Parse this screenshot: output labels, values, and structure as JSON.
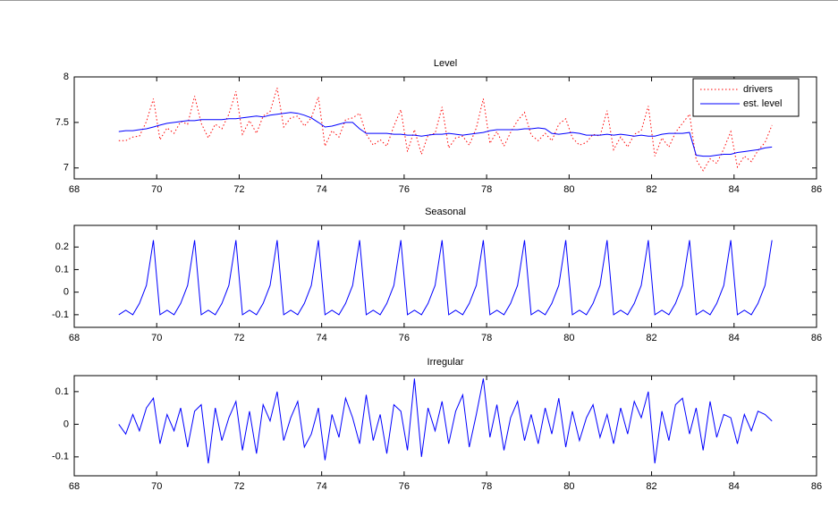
{
  "chart_data": [
    {
      "type": "line",
      "title": "Level",
      "legend": "northeast",
      "x": [
        69.08,
        69.25,
        69.42,
        69.58,
        69.75,
        69.92,
        70.08,
        70.25,
        70.42,
        70.58,
        70.75,
        70.92,
        71.08,
        71.25,
        71.42,
        71.58,
        71.75,
        71.92,
        72.08,
        72.25,
        72.42,
        72.58,
        72.75,
        72.92,
        73.08,
        73.25,
        73.42,
        73.58,
        73.75,
        73.92,
        74.08,
        74.25,
        74.42,
        74.58,
        74.75,
        74.92,
        75.08,
        75.25,
        75.42,
        75.58,
        75.75,
        75.92,
        76.08,
        76.25,
        76.42,
        76.58,
        76.75,
        76.92,
        77.08,
        77.25,
        77.42,
        77.58,
        77.75,
        77.92,
        78.08,
        78.25,
        78.42,
        78.58,
        78.75,
        78.92,
        79.08,
        79.25,
        79.42,
        79.58,
        79.75,
        79.92,
        80.08,
        80.25,
        80.42,
        80.58,
        80.75,
        80.92,
        81.08,
        81.25,
        81.42,
        81.58,
        81.75,
        81.92,
        82.08,
        82.25,
        82.42,
        82.58,
        82.75,
        82.92,
        83.08,
        83.25,
        83.42,
        83.58,
        83.75,
        83.92,
        84.08,
        84.25,
        84.42,
        84.58,
        84.75,
        84.92
      ],
      "series": [
        {
          "name": "drivers",
          "color": "#ff0000",
          "style": "dotted",
          "values": [
            7.3,
            7.3,
            7.34,
            7.35,
            7.51,
            7.76,
            7.31,
            7.44,
            7.38,
            7.51,
            7.48,
            7.79,
            7.49,
            7.33,
            7.48,
            7.43,
            7.59,
            7.84,
            7.37,
            7.52,
            7.38,
            7.57,
            7.62,
            7.88,
            7.45,
            7.55,
            7.57,
            7.46,
            7.55,
            7.78,
            7.24,
            7.41,
            7.34,
            7.53,
            7.55,
            7.6,
            7.37,
            7.25,
            7.31,
            7.24,
            7.46,
            7.64,
            7.18,
            7.42,
            7.15,
            7.36,
            7.38,
            7.67,
            7.22,
            7.33,
            7.35,
            7.25,
            7.44,
            7.76,
            7.27,
            7.4,
            7.24,
            7.39,
            7.52,
            7.61,
            7.36,
            7.3,
            7.38,
            7.3,
            7.48,
            7.54,
            7.33,
            7.25,
            7.28,
            7.37,
            7.35,
            7.63,
            7.2,
            7.34,
            7.23,
            7.37,
            7.41,
            7.68,
            7.13,
            7.33,
            7.23,
            7.39,
            7.49,
            7.59,
            7.09,
            6.97,
            7.1,
            7.05,
            7.21,
            7.4,
            7.01,
            7.13,
            7.07,
            7.19,
            7.28,
            7.47
          ]
        },
        {
          "name": "est. level",
          "color": "#0000ff",
          "style": "solid",
          "values": [
            7.4,
            7.41,
            7.41,
            7.42,
            7.43,
            7.45,
            7.47,
            7.49,
            7.5,
            7.51,
            7.52,
            7.52,
            7.53,
            7.53,
            7.53,
            7.53,
            7.54,
            7.54,
            7.55,
            7.56,
            7.57,
            7.56,
            7.58,
            7.59,
            7.6,
            7.61,
            7.6,
            7.58,
            7.55,
            7.5,
            7.45,
            7.46,
            7.48,
            7.5,
            7.5,
            7.43,
            7.38,
            7.38,
            7.38,
            7.38,
            7.37,
            7.37,
            7.36,
            7.36,
            7.35,
            7.36,
            7.37,
            7.37,
            7.38,
            7.37,
            7.36,
            7.37,
            7.38,
            7.39,
            7.41,
            7.42,
            7.42,
            7.42,
            7.42,
            7.43,
            7.43,
            7.44,
            7.43,
            7.38,
            7.37,
            7.38,
            7.39,
            7.38,
            7.36,
            7.36,
            7.36,
            7.37,
            7.36,
            7.37,
            7.36,
            7.35,
            7.36,
            7.35,
            7.35,
            7.37,
            7.38,
            7.38,
            7.38,
            7.39,
            7.14,
            7.13,
            7.13,
            7.14,
            7.15,
            7.15,
            7.17,
            7.18,
            7.19,
            7.2,
            7.22,
            7.23
          ]
        }
      ],
      "xlim": [
        68,
        86
      ],
      "xticks": [
        68,
        70,
        72,
        74,
        76,
        78,
        80,
        82,
        84,
        86
      ],
      "ylim": [
        6.88,
        8
      ],
      "yticks": [
        7,
        7.5,
        8
      ]
    },
    {
      "type": "line",
      "title": "Seasonal",
      "x": [
        69.08,
        69.25,
        69.42,
        69.58,
        69.75,
        69.92,
        70.08,
        70.25,
        70.42,
        70.58,
        70.75,
        70.92,
        71.08,
        71.25,
        71.42,
        71.58,
        71.75,
        71.92,
        72.08,
        72.25,
        72.42,
        72.58,
        72.75,
        72.92,
        73.08,
        73.25,
        73.42,
        73.58,
        73.75,
        73.92,
        74.08,
        74.25,
        74.42,
        74.58,
        74.75,
        74.92,
        75.08,
        75.25,
        75.42,
        75.58,
        75.75,
        75.92,
        76.08,
        76.25,
        76.42,
        76.58,
        76.75,
        76.92,
        77.08,
        77.25,
        77.42,
        77.58,
        77.75,
        77.92,
        78.08,
        78.25,
        78.42,
        78.58,
        78.75,
        78.92,
        79.08,
        79.25,
        79.42,
        79.58,
        79.75,
        79.92,
        80.08,
        80.25,
        80.42,
        80.58,
        80.75,
        80.92,
        81.08,
        81.25,
        81.42,
        81.58,
        81.75,
        81.92,
        82.08,
        82.25,
        82.42,
        82.58,
        82.75,
        82.92,
        83.08,
        83.25,
        83.42,
        83.58,
        83.75,
        83.92,
        84.08,
        84.25,
        84.42,
        84.58,
        84.75,
        84.92
      ],
      "series": [
        {
          "color": "#0000ff",
          "style": "solid",
          "values": [
            -0.1,
            -0.08,
            -0.1,
            -0.05,
            0.03,
            0.23,
            -0.1,
            -0.08,
            -0.1,
            -0.05,
            0.03,
            0.23,
            -0.1,
            -0.08,
            -0.1,
            -0.05,
            0.03,
            0.23,
            -0.1,
            -0.08,
            -0.1,
            -0.05,
            0.03,
            0.23,
            -0.1,
            -0.08,
            -0.1,
            -0.05,
            0.03,
            0.23,
            -0.1,
            -0.08,
            -0.1,
            -0.05,
            0.03,
            0.23,
            -0.1,
            -0.08,
            -0.1,
            -0.05,
            0.03,
            0.23,
            -0.1,
            -0.08,
            -0.1,
            -0.05,
            0.03,
            0.23,
            -0.1,
            -0.08,
            -0.1,
            -0.05,
            0.03,
            0.23,
            -0.1,
            -0.08,
            -0.1,
            -0.05,
            0.03,
            0.23,
            -0.1,
            -0.08,
            -0.1,
            -0.05,
            0.03,
            0.23,
            -0.1,
            -0.08,
            -0.1,
            -0.05,
            0.03,
            0.23,
            -0.1,
            -0.08,
            -0.1,
            -0.05,
            0.03,
            0.23,
            -0.1,
            -0.08,
            -0.1,
            -0.05,
            0.03,
            0.23,
            -0.1,
            -0.08,
            -0.1,
            -0.05,
            0.03,
            0.23,
            -0.1,
            -0.08,
            -0.1,
            -0.05,
            0.03,
            0.23
          ]
        }
      ],
      "xlim": [
        68,
        86
      ],
      "xticks": [
        68,
        70,
        72,
        74,
        76,
        78,
        80,
        82,
        84,
        86
      ],
      "ylim": [
        -0.156,
        0.296
      ],
      "yticks": [
        -0.1,
        0,
        0.1,
        0.2
      ]
    },
    {
      "type": "line",
      "title": "Irregular",
      "x": [
        69.08,
        69.25,
        69.42,
        69.58,
        69.75,
        69.92,
        70.08,
        70.25,
        70.42,
        70.58,
        70.75,
        70.92,
        71.08,
        71.25,
        71.42,
        71.58,
        71.75,
        71.92,
        72.08,
        72.25,
        72.42,
        72.58,
        72.75,
        72.92,
        73.08,
        73.25,
        73.42,
        73.58,
        73.75,
        73.92,
        74.08,
        74.25,
        74.42,
        74.58,
        74.75,
        74.92,
        75.08,
        75.25,
        75.42,
        75.58,
        75.75,
        75.92,
        76.08,
        76.25,
        76.42,
        76.58,
        76.75,
        76.92,
        77.08,
        77.25,
        77.42,
        77.58,
        77.75,
        77.92,
        78.08,
        78.25,
        78.42,
        78.58,
        78.75,
        78.92,
        79.08,
        79.25,
        79.42,
        79.58,
        79.75,
        79.92,
        80.08,
        80.25,
        80.42,
        80.58,
        80.75,
        80.92,
        81.08,
        81.25,
        81.42,
        81.58,
        81.75,
        81.92,
        82.08,
        82.25,
        82.42,
        82.58,
        82.75,
        82.92,
        83.08,
        83.25,
        83.42,
        83.58,
        83.75,
        83.92,
        84.08,
        84.25,
        84.42,
        84.58,
        84.75,
        84.92
      ],
      "series": [
        {
          "color": "#0000ff",
          "style": "solid",
          "values": [
            0.0,
            -0.03,
            0.03,
            -0.02,
            0.05,
            0.08,
            -0.06,
            0.03,
            -0.02,
            0.05,
            -0.07,
            0.04,
            0.06,
            -0.12,
            0.05,
            -0.05,
            0.02,
            0.07,
            -0.08,
            0.04,
            -0.09,
            0.06,
            0.01,
            0.1,
            -0.05,
            0.02,
            0.07,
            -0.07,
            -0.03,
            0.05,
            -0.11,
            0.03,
            -0.04,
            0.08,
            0.02,
            -0.06,
            0.09,
            -0.05,
            0.03,
            -0.09,
            0.06,
            0.04,
            -0.08,
            0.14,
            -0.1,
            0.05,
            -0.02,
            0.07,
            -0.06,
            0.04,
            0.09,
            -0.07,
            0.03,
            0.14,
            -0.04,
            0.06,
            -0.08,
            0.02,
            0.07,
            -0.05,
            0.03,
            -0.06,
            0.05,
            -0.03,
            0.08,
            -0.07,
            0.04,
            -0.05,
            0.02,
            0.06,
            -0.04,
            0.03,
            -0.06,
            0.05,
            -0.03,
            0.07,
            0.02,
            0.1,
            -0.12,
            0.04,
            -0.05,
            0.06,
            0.08,
            -0.03,
            0.05,
            -0.08,
            0.07,
            -0.04,
            0.03,
            0.02,
            -0.06,
            0.03,
            -0.02,
            0.04,
            0.03,
            0.01
          ]
        }
      ],
      "xlim": [
        68,
        86
      ],
      "xticks": [
        68,
        70,
        72,
        74,
        76,
        78,
        80,
        82,
        84,
        86
      ],
      "ylim": [
        -0.158,
        0.149
      ],
      "yticks": [
        -0.1,
        0,
        0.1
      ]
    }
  ]
}
